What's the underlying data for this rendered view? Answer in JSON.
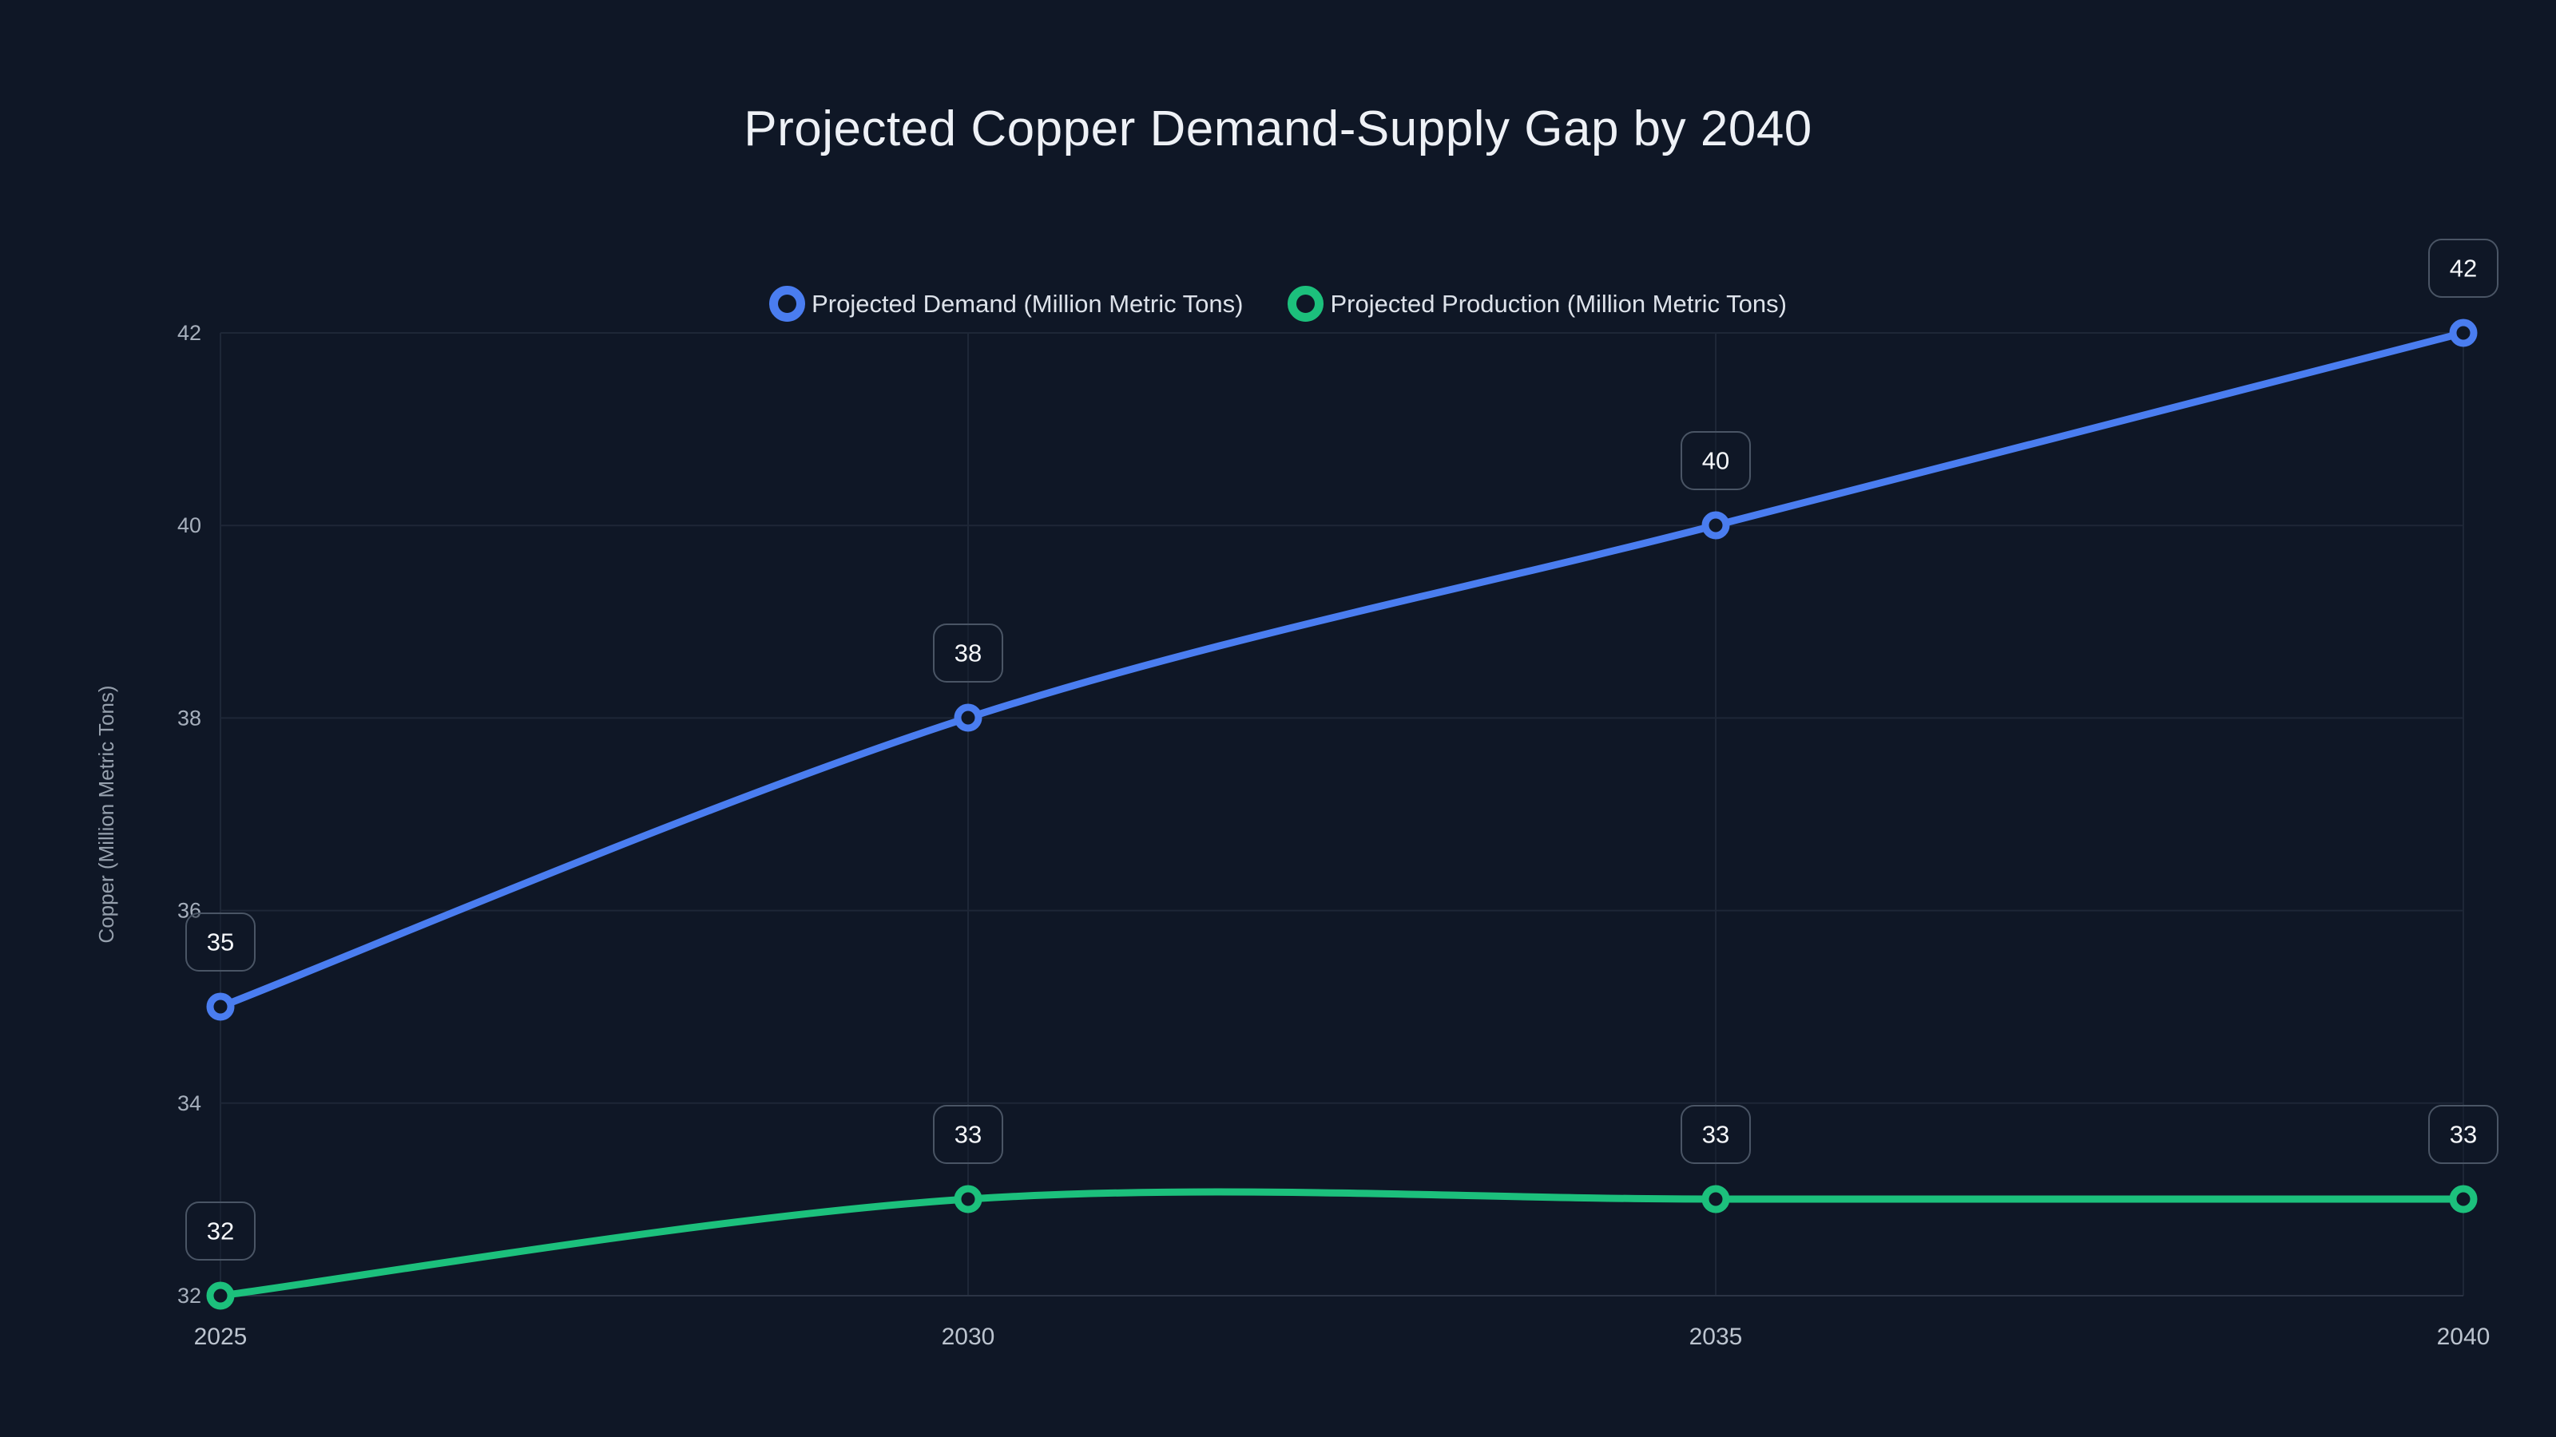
{
  "chart_data": {
    "type": "line",
    "title": "Projected Copper Demand-Supply Gap by 2040",
    "xlabel": "",
    "ylabel": "Copper (Million Metric Tons)",
    "categories": [
      "2025",
      "2030",
      "2035",
      "2040"
    ],
    "x": [
      2025,
      2030,
      2035,
      2040
    ],
    "xlim": [
      2025,
      2040
    ],
    "ylim": [
      32,
      42
    ],
    "yticks": [
      32,
      34,
      36,
      38,
      40,
      42
    ],
    "grid": true,
    "legend_position": "top-center",
    "point_style": "hollow-circle",
    "line_style": "smooth",
    "data_labels_visible": true,
    "series": [
      {
        "name": "Projected Demand (Million Metric Tons)",
        "slug": "projected-demand",
        "values": [
          35,
          38,
          40,
          42
        ],
        "color": "#4a7df0"
      },
      {
        "name": "Projected Production (Million Metric Tons)",
        "slug": "projected-production",
        "values": [
          32,
          33,
          33,
          33
        ],
        "color": "#1cc07c"
      }
    ],
    "colors": {
      "background": "#0f1726",
      "grid": "#1e2737",
      "axis": "#2b3445",
      "y_tick_label": "#a6afbc",
      "x_tick_label": "#bcc4cf",
      "axis_title": "#96a0ad",
      "title": "#eef1f6",
      "legend_text": "#dde2ea",
      "label_box_border": "#4a5565",
      "label_box_fill": "rgba(16,24,39,0.45)",
      "label_text": "#f5f7fa",
      "demand_line": "#4a7df0",
      "production_line": "#1cc07c"
    }
  }
}
